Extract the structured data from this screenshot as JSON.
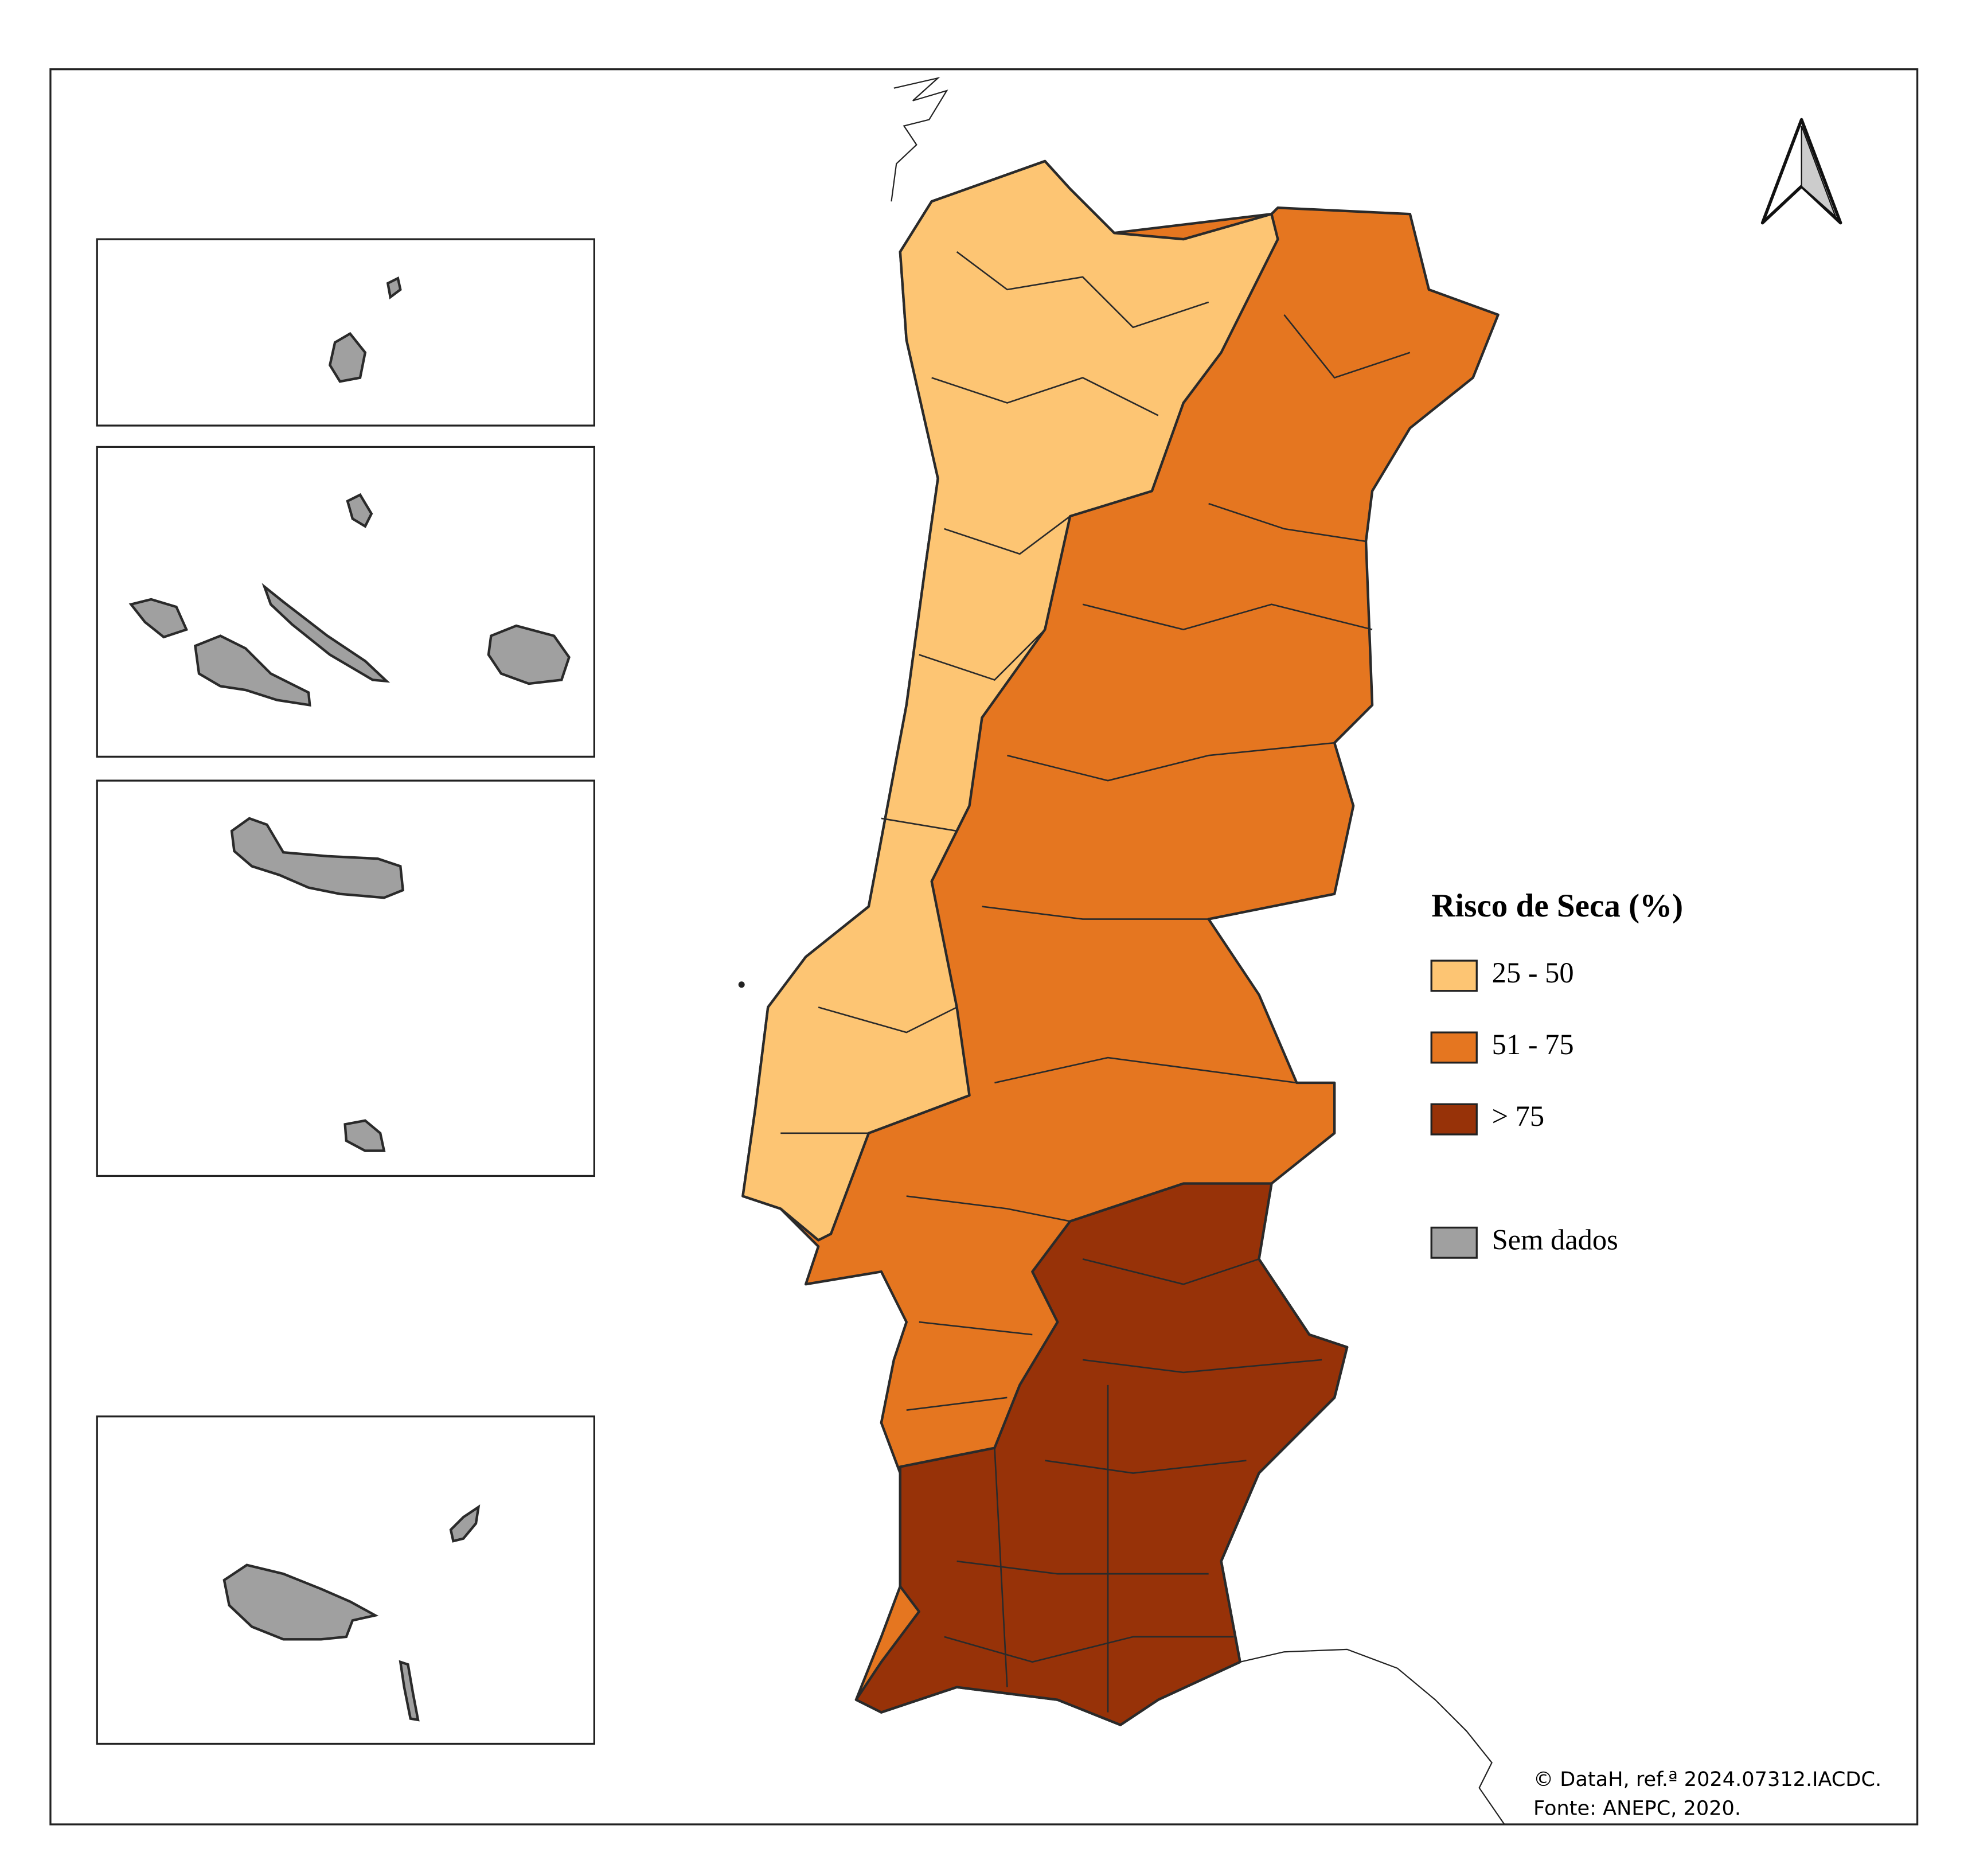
{
  "legend": {
    "title": "Risco de Seca (%)",
    "items": [
      {
        "label": "25 - 50",
        "color": "#fdc573"
      },
      {
        "label": "51 - 75",
        "color": "#e57620"
      },
      {
        "label": "> 75",
        "color": "#973208"
      },
      {
        "label": "Sem dados",
        "color": "#a0a0a0"
      }
    ]
  },
  "credits": [
    "© DataH, ref.ª 2024.07312.IACDC.",
    "Fonte:  ANEPC, 2020."
  ]
}
